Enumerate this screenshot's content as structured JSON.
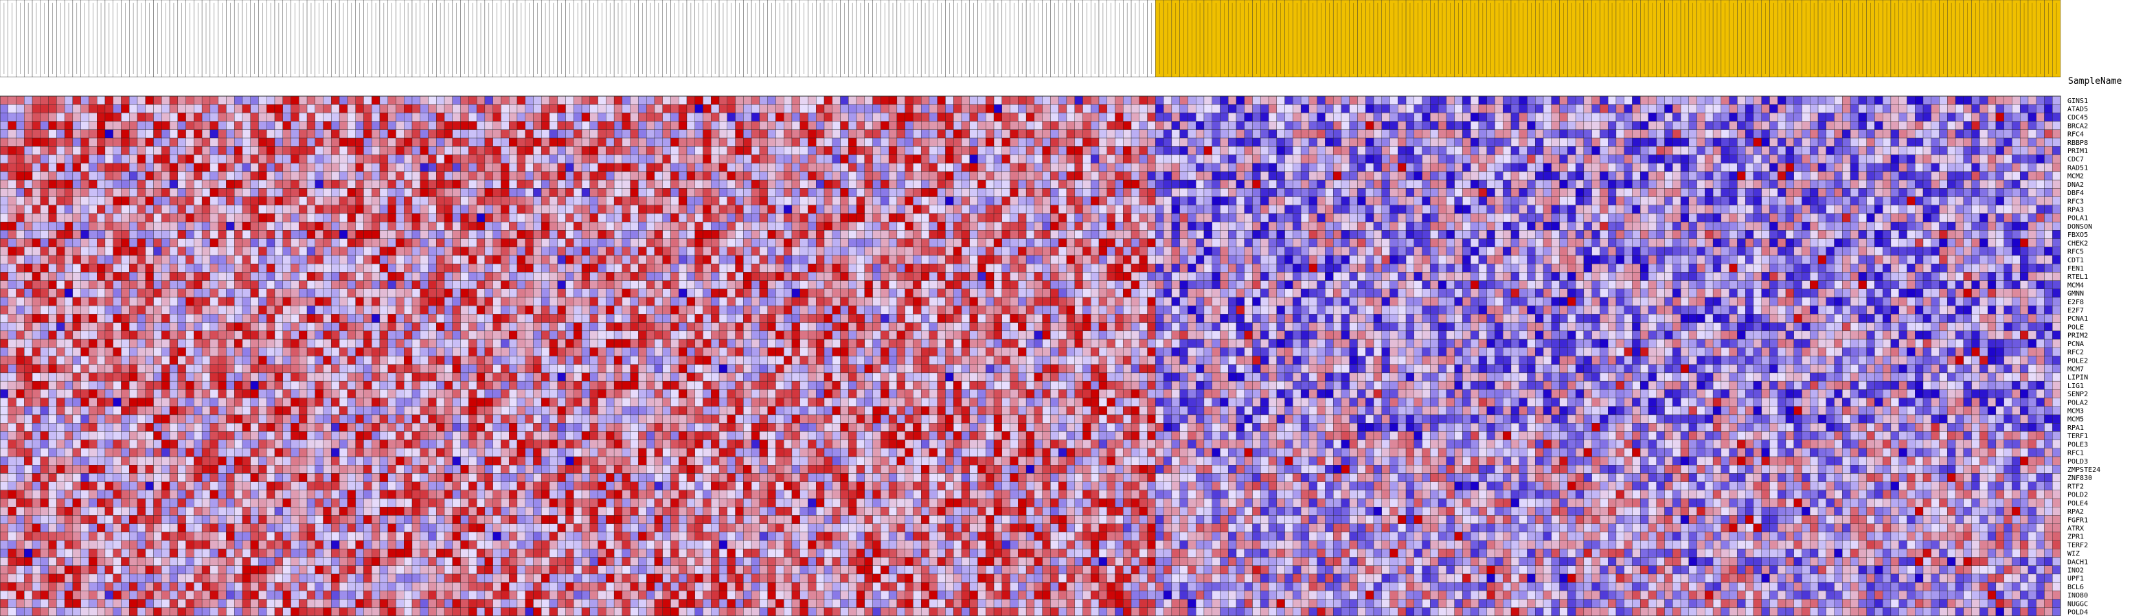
{
  "chart_data": {
    "type": "heatmap",
    "title": "",
    "column_axis_label": "SampleName",
    "row_labels": [
      "GINS1",
      "ATAD5",
      "CDC45",
      "BRCA2",
      "RFC4",
      "RBBP8",
      "PRIM1",
      "CDC7",
      "RAD51",
      "MCM2",
      "DNA2",
      "DBF4",
      "RFC3",
      "RPA3",
      "POLA1",
      "DONSON",
      "FBXO5",
      "CHEK2",
      "RFC5",
      "CDT1",
      "FEN1",
      "RTEL1",
      "MCM4",
      "GMNN",
      "E2F8",
      "E2F7",
      "PCNA1",
      "POLE",
      "PRIM2",
      "PCNA",
      "RFC2",
      "POLE2",
      "MCM7",
      "LIPIN",
      "LIG1",
      "SENP2",
      "POLA2",
      "MCM3",
      "MCM5",
      "RPA1",
      "TERF1",
      "POLE3",
      "RFC1",
      "POLD3",
      "ZMPSTE24",
      "ZNF830",
      "RTF2",
      "POLD2",
      "POLE4",
      "RPA2",
      "FGFR1",
      "ATRX",
      "ZPR1",
      "TERF2",
      "WIZ",
      "DACH1",
      "INO2",
      "UPF1",
      "BCL6",
      "INO80",
      "NUGGC",
      "POLD4"
    ],
    "n_columns": 255,
    "n_columns_group_A": 143,
    "n_columns_group_B": 112,
    "group_colors": {
      "group_A": "#ffffff",
      "group_B": "#f0c000"
    },
    "color_scale": {
      "high": "#cc0000",
      "mid": "#e8e0ff",
      "low": "#1a00cc"
    },
    "row_range_note": "",
    "values_range": [
      -3,
      3
    ]
  },
  "colors": {
    "border": "#333333",
    "grid": "#222222"
  }
}
